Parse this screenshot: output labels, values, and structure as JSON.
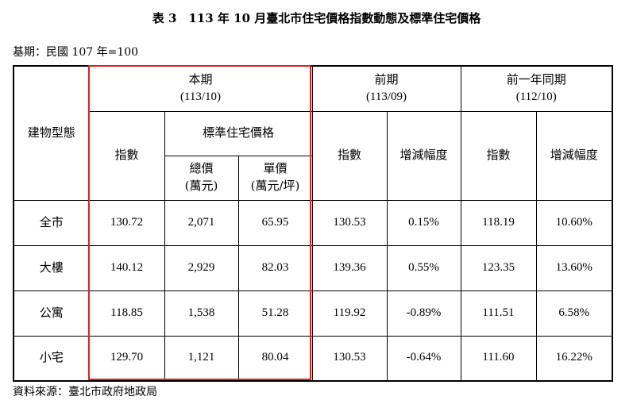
{
  "title": "表 3　113 年 10 月臺北市住宅價格指數動態及標準住宅價格",
  "base_note": "基期：民國 107 年=100",
  "source_note": "資料來源：臺北市政府地政局",
  "headers": {
    "type": "建物型態",
    "current": "本期",
    "current_period": "(113/10)",
    "previous": "前期",
    "previous_period": "(113/09)",
    "last_year": "前一年同期",
    "last_year_period": "(112/10)",
    "index": "指數",
    "std_price": "標準住宅價格",
    "total_price": "總價",
    "total_unit": "(萬元)",
    "unit_price": "單價",
    "unit_price_unit": "(萬元/坪)",
    "prev_index": "指數",
    "prev_change": "增減幅度",
    "ly_index": "指數",
    "ly_change": "增減幅度"
  },
  "rows": [
    {
      "type": "全市",
      "index": "130.72",
      "total": "2,071",
      "unit": "65.95",
      "prev_index": "130.53",
      "prev_change": "0.15%",
      "ly_index": "118.19",
      "ly_change": "10.60%"
    },
    {
      "type": "大樓",
      "index": "140.12",
      "total": "2,929",
      "unit": "82.03",
      "prev_index": "139.36",
      "prev_change": "0.55%",
      "ly_index": "123.35",
      "ly_change": "13.60%"
    },
    {
      "type": "公寓",
      "index": "118.85",
      "total": "1,538",
      "unit": "51.28",
      "prev_index": "119.92",
      "prev_change": "-0.89%",
      "ly_index": "111.51",
      "ly_change": "6.58%"
    },
    {
      "type": "小宅",
      "index": "129.70",
      "total": "1,121",
      "unit": "80.04",
      "prev_index": "130.53",
      "prev_change": "-0.64%",
      "ly_index": "111.60",
      "ly_change": "16.22%"
    }
  ],
  "highlight_color": "#e02020"
}
